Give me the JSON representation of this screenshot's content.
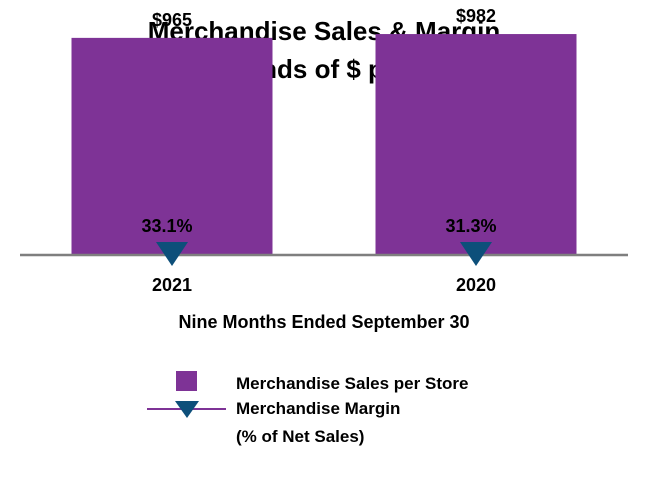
{
  "chart_data": {
    "type": "bar",
    "title": "Merchandise Sales & Margin",
    "subtitle": "(Thousands of $ per store)",
    "categories": [
      "2021",
      "2020"
    ],
    "series": [
      {
        "name": "Merchandise Sales per Store",
        "values": [
          965,
          982
        ],
        "labels": [
          "$965",
          "$982"
        ],
        "color": "#7e3396"
      },
      {
        "name": "Merchandise Margin",
        "values": [
          33.1,
          31.3
        ],
        "labels": [
          "33.1%",
          "31.3%"
        ],
        "color": "#0d4f7a",
        "marker": "triangle-down"
      }
    ],
    "xlabel": "Nine Months Ended September 30",
    "ylabel": "",
    "ylim": [
      0,
      1000
    ],
    "grid": false,
    "legend": {
      "position": "bottom",
      "entries": [
        "Merchandise Sales per Store",
        "Merchandise Margin",
        "(% of Net Sales)"
      ]
    }
  },
  "colors": {
    "bar": "#7e3396",
    "marker": "#0d4f7a",
    "baseline": "#7f7f7f",
    "legend_line": "#7e3396"
  }
}
